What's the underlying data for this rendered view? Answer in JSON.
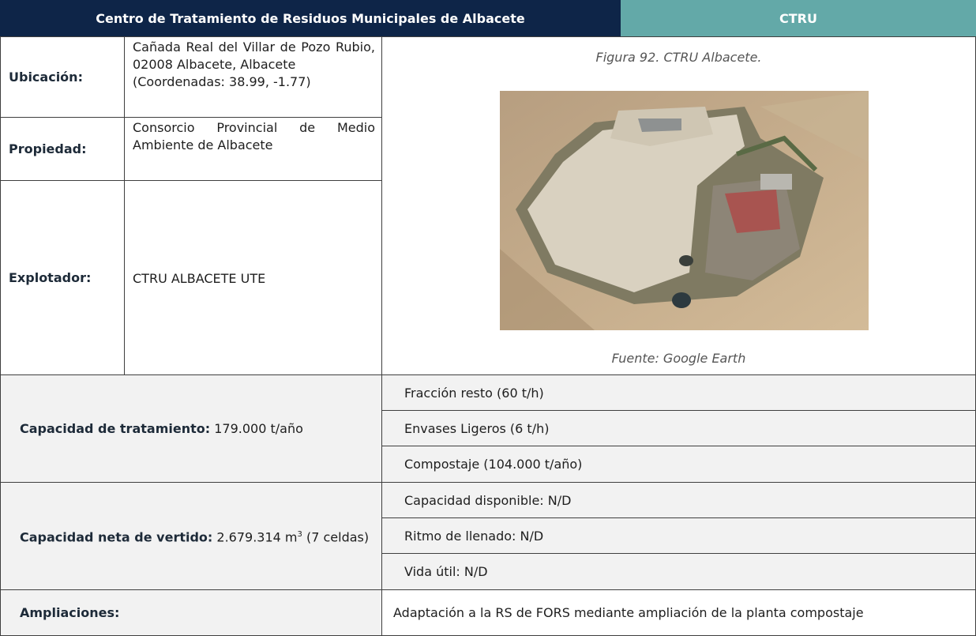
{
  "header": {
    "title": "Centro de Tratamiento de Residuos Municipales de Albacete",
    "code": "CTRU"
  },
  "info": {
    "location": {
      "label": "Ubicación:",
      "address": "Cañada Real del Villar de Pozo Rubio, 02008 Albacete, Albacete",
      "coordinates": "(Coordenadas: 38.99, -1.77)"
    },
    "owner": {
      "label": "Propiedad:",
      "value": "Consorcio Provincial de Medio Ambiente de Albacete"
    },
    "operator": {
      "label": "Explotador:",
      "value": "CTRU ALBACETE UTE"
    }
  },
  "figure": {
    "caption": "Figura 92. CTRU Albacete.",
    "source": "Fuente: Google Earth"
  },
  "treatment": {
    "label": "Capacidad de tratamiento:",
    "value": "179.000 t/año",
    "lines": [
      "Fracción resto (60 t/h)",
      "Envases Ligeros (6 t/h)",
      "Compostaje (104.000 t/año)"
    ]
  },
  "landfill": {
    "label": "Capacidad neta de vertido:",
    "value": "2.679.314 m",
    "exponent": "3",
    "value_suffix": " (7 celdas)",
    "lines": [
      "Capacidad disponible: N/D",
      "Ritmo de llenado: N/D",
      "Vida útil: N/D"
    ]
  },
  "extensions": {
    "label": "Ampliaciones:",
    "value": "Adaptación a la RS de FORS mediante ampliación de la planta compostaje"
  }
}
